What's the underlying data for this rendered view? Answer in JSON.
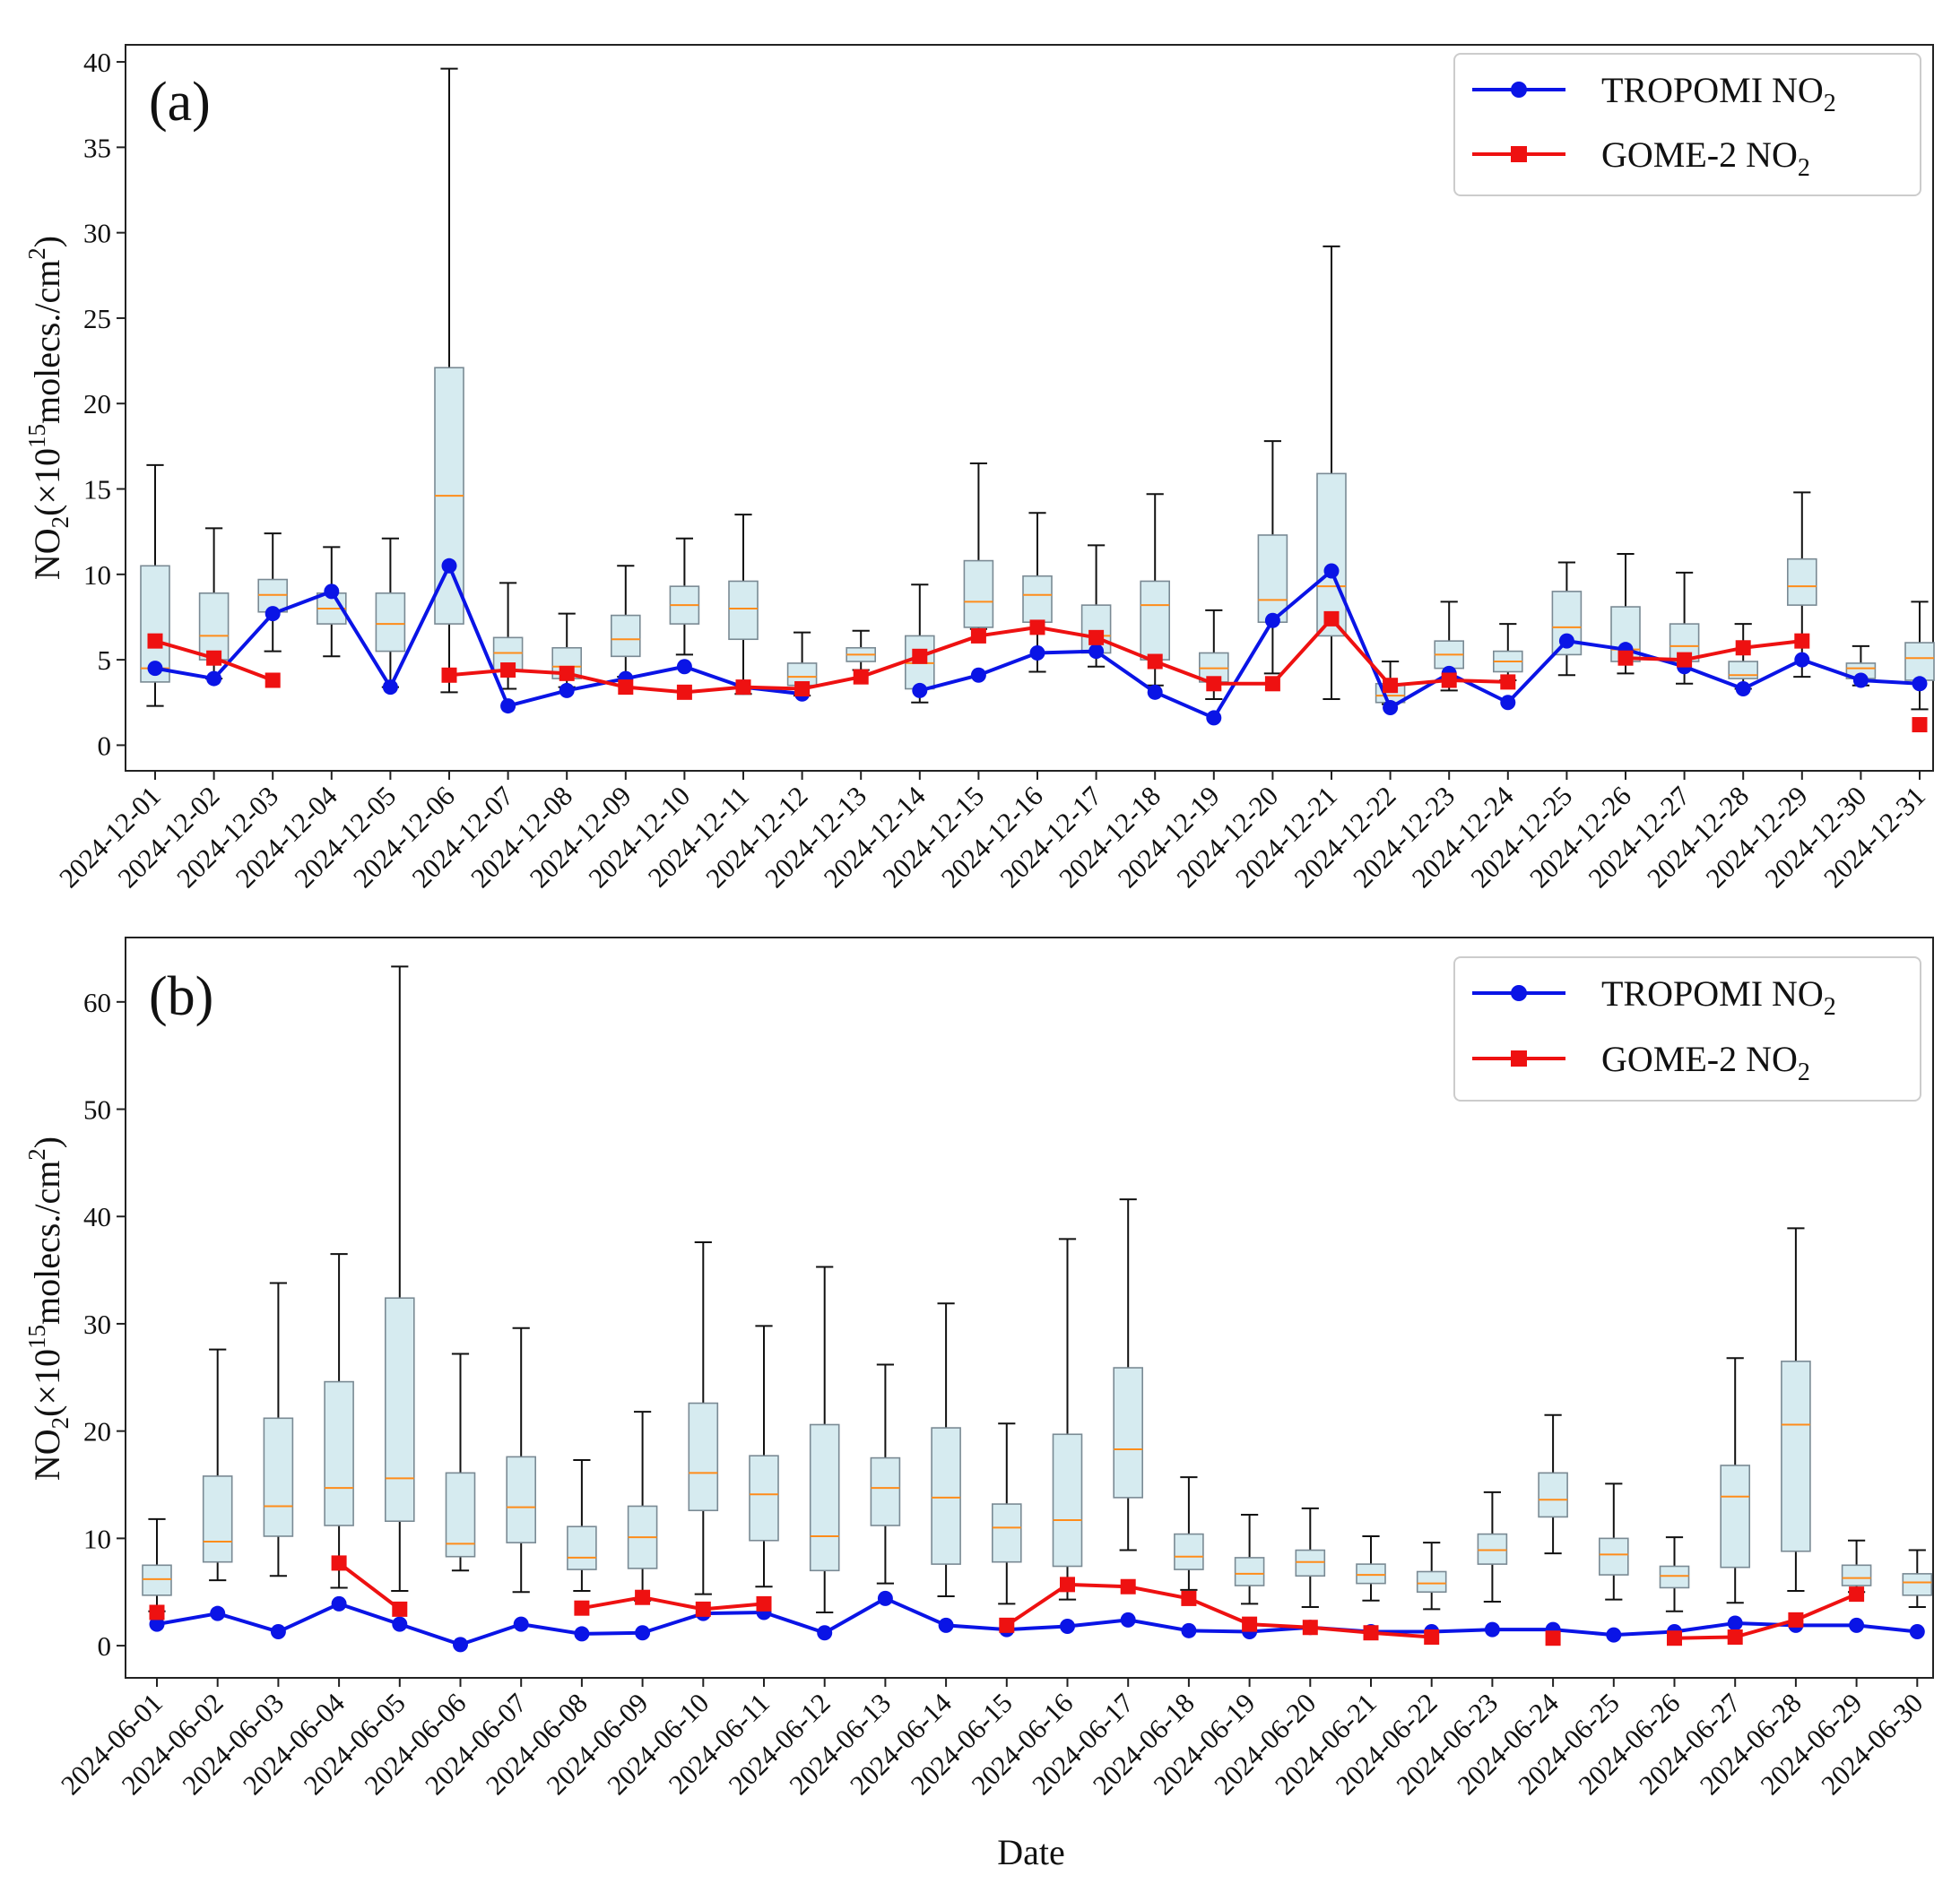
{
  "figure": {
    "xlabel": "Date"
  },
  "chart_data": [
    {
      "type": "box+line",
      "panel_label": "(a)",
      "ylabel": "NO2(×10^15molecs./cm^2)",
      "ylim": [
        -1.5,
        41
      ],
      "yticks": [
        0,
        5,
        10,
        15,
        20,
        25,
        30,
        35,
        40
      ],
      "legend": {
        "position": "top-right",
        "entries": [
          "TROPOMI NO2",
          "GOME-2 NO2"
        ]
      },
      "colors": {
        "tropomi": "#0a14e6",
        "gome2": "#ee1111",
        "box_fill": "#d6ebf0",
        "box_edge": "#7a8a94",
        "median": "#ff8c1a"
      },
      "categories": [
        "2024-12-01",
        "2024-12-02",
        "2024-12-03",
        "2024-12-04",
        "2024-12-05",
        "2024-12-06",
        "2024-12-07",
        "2024-12-08",
        "2024-12-09",
        "2024-12-10",
        "2024-12-11",
        "2024-12-12",
        "2024-12-13",
        "2024-12-14",
        "2024-12-15",
        "2024-12-16",
        "2024-12-17",
        "2024-12-18",
        "2024-12-19",
        "2024-12-20",
        "2024-12-21",
        "2024-12-22",
        "2024-12-23",
        "2024-12-24",
        "2024-12-25",
        "2024-12-26",
        "2024-12-27",
        "2024-12-28",
        "2024-12-29",
        "2024-12-30",
        "2024-12-31"
      ],
      "boxes": [
        {
          "whislo": 2.3,
          "q1": 3.7,
          "med": 4.5,
          "q3": 10.5,
          "whishi": 16.4
        },
        {
          "whislo": 3.9,
          "q1": 5.0,
          "med": 6.4,
          "q3": 8.9,
          "whishi": 12.7
        },
        {
          "whislo": 5.5,
          "q1": 7.8,
          "med": 8.8,
          "q3": 9.7,
          "whishi": 12.4
        },
        {
          "whislo": 5.2,
          "q1": 7.1,
          "med": 8.0,
          "q3": 8.9,
          "whishi": 11.6
        },
        {
          "whislo": 3.4,
          "q1": 5.5,
          "med": 7.1,
          "q3": 8.9,
          "whishi": 12.1
        },
        {
          "whislo": 3.1,
          "q1": 7.1,
          "med": 14.6,
          "q3": 22.1,
          "whishi": 39.6
        },
        {
          "whislo": 3.3,
          "q1": 4.4,
          "med": 5.4,
          "q3": 6.3,
          "whishi": 9.5
        },
        {
          "whislo": 3.4,
          "q1": 3.9,
          "med": 4.6,
          "q3": 5.7,
          "whishi": 7.7
        },
        {
          "whislo": 4.0,
          "q1": 5.2,
          "med": 6.2,
          "q3": 7.6,
          "whishi": 10.5
        },
        {
          "whislo": 5.3,
          "q1": 7.1,
          "med": 8.2,
          "q3": 9.3,
          "whishi": 12.1
        },
        {
          "whislo": 3.0,
          "q1": 6.2,
          "med": 8.0,
          "q3": 9.6,
          "whishi": 13.5
        },
        {
          "whislo": 2.9,
          "q1": 3.5,
          "med": 4.0,
          "q3": 4.8,
          "whishi": 6.6
        },
        {
          "whislo": 4.4,
          "q1": 4.9,
          "med": 5.3,
          "q3": 5.7,
          "whishi": 6.7
        },
        {
          "whislo": 2.5,
          "q1": 3.3,
          "med": 4.8,
          "q3": 6.4,
          "whishi": 9.4
        },
        {
          "whislo": 6.8,
          "q1": 6.9,
          "med": 8.4,
          "q3": 10.8,
          "whishi": 16.5
        },
        {
          "whislo": 4.3,
          "q1": 7.2,
          "med": 8.8,
          "q3": 9.9,
          "whishi": 13.6
        },
        {
          "whislo": 4.6,
          "q1": 5.4,
          "med": 6.4,
          "q3": 8.2,
          "whishi": 11.7
        },
        {
          "whislo": 3.5,
          "q1": 5.0,
          "med": 8.2,
          "q3": 9.6,
          "whishi": 14.7
        },
        {
          "whislo": 2.7,
          "q1": 3.7,
          "med": 4.5,
          "q3": 5.4,
          "whishi": 7.9
        },
        {
          "whislo": 4.2,
          "q1": 7.2,
          "med": 8.5,
          "q3": 12.3,
          "whishi": 17.8
        },
        {
          "whislo": 2.7,
          "q1": 6.4,
          "med": 9.3,
          "q3": 15.9,
          "whishi": 29.2
        },
        {
          "whislo": 2.4,
          "q1": 2.5,
          "med": 2.9,
          "q3": 3.6,
          "whishi": 4.9
        },
        {
          "whislo": 3.2,
          "q1": 4.5,
          "med": 5.3,
          "q3": 6.1,
          "whishi": 8.4
        },
        {
          "whislo": 3.8,
          "q1": 4.3,
          "med": 4.9,
          "q3": 5.5,
          "whishi": 7.1
        },
        {
          "whislo": 4.1,
          "q1": 5.3,
          "med": 6.9,
          "q3": 9.0,
          "whishi": 10.7
        },
        {
          "whislo": 4.2,
          "q1": 4.9,
          "med": 5.6,
          "q3": 8.1,
          "whishi": 11.2
        },
        {
          "whislo": 3.6,
          "q1": 4.9,
          "med": 5.8,
          "q3": 7.1,
          "whishi": 10.1
        },
        {
          "whislo": 3.3,
          "q1": 3.9,
          "med": 4.1,
          "q3": 4.9,
          "whishi": 7.1
        },
        {
          "whislo": 4.0,
          "q1": 8.2,
          "med": 9.3,
          "q3": 10.9,
          "whishi": 14.8
        },
        {
          "whislo": 3.5,
          "q1": 3.9,
          "med": 4.5,
          "q3": 4.8,
          "whishi": 5.8
        },
        {
          "whislo": 2.1,
          "q1": 3.8,
          "med": 5.1,
          "q3": 6.0,
          "whishi": 8.4
        }
      ],
      "series": [
        {
          "name": "TROPOMI NO2",
          "marker": "circle",
          "values": [
            4.5,
            3.9,
            7.7,
            9.0,
            3.4,
            10.5,
            2.3,
            3.2,
            3.9,
            4.6,
            3.4,
            3.0,
            null,
            3.2,
            4.1,
            5.4,
            5.5,
            3.1,
            1.6,
            7.3,
            10.2,
            2.2,
            4.2,
            2.5,
            6.1,
            5.6,
            4.6,
            3.3,
            5.0,
            3.8,
            3.6
          ]
        },
        {
          "name": "GOME-2 NO2",
          "marker": "square",
          "values": [
            6.1,
            5.1,
            3.8,
            null,
            null,
            4.1,
            4.4,
            4.2,
            3.4,
            3.1,
            3.4,
            3.3,
            4.0,
            5.2,
            6.4,
            6.9,
            6.3,
            4.9,
            3.6,
            3.6,
            7.4,
            3.5,
            3.8,
            3.7,
            null,
            5.1,
            5.0,
            5.7,
            6.1,
            null,
            1.2
          ]
        }
      ]
    },
    {
      "type": "box+line",
      "panel_label": "(b)",
      "ylabel": "NO2(×10^15molecs./cm^2)",
      "ylim": [
        -3,
        66
      ],
      "yticks": [
        0,
        10,
        20,
        30,
        40,
        50,
        60
      ],
      "legend": {
        "position": "top-right",
        "entries": [
          "TROPOMI NO2",
          "GOME-2 NO2"
        ]
      },
      "colors": {
        "tropomi": "#0a14e6",
        "gome2": "#ee1111",
        "box_fill": "#d6ebf0",
        "box_edge": "#7a8a94",
        "median": "#ff8c1a"
      },
      "categories": [
        "2024-06-01",
        "2024-06-02",
        "2024-06-03",
        "2024-06-04",
        "2024-06-05",
        "2024-06-06",
        "2024-06-07",
        "2024-06-08",
        "2024-06-09",
        "2024-06-10",
        "2024-06-11",
        "2024-06-12",
        "2024-06-13",
        "2024-06-14",
        "2024-06-15",
        "2024-06-16",
        "2024-06-17",
        "2024-06-18",
        "2024-06-19",
        "2024-06-20",
        "2024-06-21",
        "2024-06-22",
        "2024-06-23",
        "2024-06-24",
        "2024-06-25",
        "2024-06-26",
        "2024-06-27",
        "2024-06-28",
        "2024-06-29",
        "2024-06-30"
      ],
      "boxes": [
        {
          "whislo": 3.2,
          "q1": 4.7,
          "med": 6.2,
          "q3": 7.5,
          "whishi": 11.8
        },
        {
          "whislo": 6.1,
          "q1": 7.8,
          "med": 9.7,
          "q3": 15.8,
          "whishi": 27.6
        },
        {
          "whislo": 6.5,
          "q1": 10.2,
          "med": 13.0,
          "q3": 21.2,
          "whishi": 33.8
        },
        {
          "whislo": 5.4,
          "q1": 11.2,
          "med": 14.7,
          "q3": 24.6,
          "whishi": 36.5
        },
        {
          "whislo": 5.1,
          "q1": 11.6,
          "med": 15.6,
          "q3": 32.4,
          "whishi": 63.3
        },
        {
          "whislo": 7.0,
          "q1": 8.3,
          "med": 9.5,
          "q3": 16.1,
          "whishi": 27.2
        },
        {
          "whislo": 5.0,
          "q1": 9.6,
          "med": 12.9,
          "q3": 17.6,
          "whishi": 29.6
        },
        {
          "whislo": 5.1,
          "q1": 7.1,
          "med": 8.2,
          "q3": 11.1,
          "whishi": 17.3
        },
        {
          "whislo": 4.2,
          "q1": 7.2,
          "med": 10.1,
          "q3": 13.0,
          "whishi": 21.8
        },
        {
          "whislo": 4.8,
          "q1": 12.6,
          "med": 16.1,
          "q3": 22.6,
          "whishi": 37.6
        },
        {
          "whislo": 5.5,
          "q1": 9.8,
          "med": 14.1,
          "q3": 17.7,
          "whishi": 29.8
        },
        {
          "whislo": 3.1,
          "q1": 7.0,
          "med": 10.2,
          "q3": 20.6,
          "whishi": 35.3
        },
        {
          "whislo": 5.8,
          "q1": 11.2,
          "med": 14.7,
          "q3": 17.5,
          "whishi": 26.2
        },
        {
          "whislo": 4.6,
          "q1": 7.6,
          "med": 13.8,
          "q3": 20.3,
          "whishi": 31.9
        },
        {
          "whislo": 3.9,
          "q1": 7.8,
          "med": 11.0,
          "q3": 13.2,
          "whishi": 20.7
        },
        {
          "whislo": 4.3,
          "q1": 7.4,
          "med": 11.7,
          "q3": 19.7,
          "whishi": 37.9
        },
        {
          "whislo": 8.9,
          "q1": 13.8,
          "med": 18.3,
          "q3": 25.9,
          "whishi": 41.6
        },
        {
          "whislo": 5.2,
          "q1": 7.1,
          "med": 8.3,
          "q3": 10.4,
          "whishi": 15.7
        },
        {
          "whislo": 3.9,
          "q1": 5.6,
          "med": 6.7,
          "q3": 8.2,
          "whishi": 12.2
        },
        {
          "whislo": 3.6,
          "q1": 6.5,
          "med": 7.8,
          "q3": 8.9,
          "whishi": 12.8
        },
        {
          "whislo": 4.2,
          "q1": 5.8,
          "med": 6.6,
          "q3": 7.6,
          "whishi": 10.2
        },
        {
          "whislo": 3.4,
          "q1": 5.0,
          "med": 5.8,
          "q3": 6.9,
          "whishi": 9.6
        },
        {
          "whislo": 4.1,
          "q1": 7.6,
          "med": 8.9,
          "q3": 10.4,
          "whishi": 14.3
        },
        {
          "whislo": 8.6,
          "q1": 12.0,
          "med": 13.6,
          "q3": 16.1,
          "whishi": 21.5
        },
        {
          "whislo": 4.3,
          "q1": 6.6,
          "med": 8.5,
          "q3": 10.0,
          "whishi": 15.1
        },
        {
          "whislo": 3.2,
          "q1": 5.4,
          "med": 6.5,
          "q3": 7.4,
          "whishi": 10.1
        },
        {
          "whislo": 4.0,
          "q1": 7.3,
          "med": 13.9,
          "q3": 16.8,
          "whishi": 26.8
        },
        {
          "whislo": 5.1,
          "q1": 8.8,
          "med": 20.6,
          "q3": 26.5,
          "whishi": 38.9
        },
        {
          "whislo": 5.0,
          "q1": 5.6,
          "med": 6.3,
          "q3": 7.5,
          "whishi": 9.8
        },
        {
          "whislo": 3.6,
          "q1": 4.7,
          "med": 5.9,
          "q3": 6.7,
          "whishi": 8.9
        }
      ],
      "series": [
        {
          "name": "TROPOMI NO2",
          "marker": "circle",
          "values": [
            2.0,
            3.0,
            1.3,
            3.9,
            2.0,
            0.1,
            2.0,
            1.1,
            1.2,
            3.0,
            3.1,
            1.2,
            4.4,
            1.9,
            1.5,
            1.8,
            2.4,
            1.4,
            1.3,
            1.7,
            1.3,
            1.3,
            1.5,
            1.5,
            1.0,
            1.3,
            2.1,
            1.9,
            1.9,
            1.3
          ]
        },
        {
          "name": "GOME-2 NO2",
          "marker": "square",
          "values": [
            3.1,
            null,
            null,
            7.7,
            3.4,
            null,
            null,
            3.5,
            4.5,
            3.4,
            3.9,
            null,
            null,
            null,
            1.9,
            5.7,
            5.5,
            4.4,
            2.0,
            1.7,
            1.2,
            0.8,
            null,
            0.7,
            null,
            0.7,
            0.8,
            2.4,
            4.8,
            null
          ]
        }
      ]
    }
  ]
}
